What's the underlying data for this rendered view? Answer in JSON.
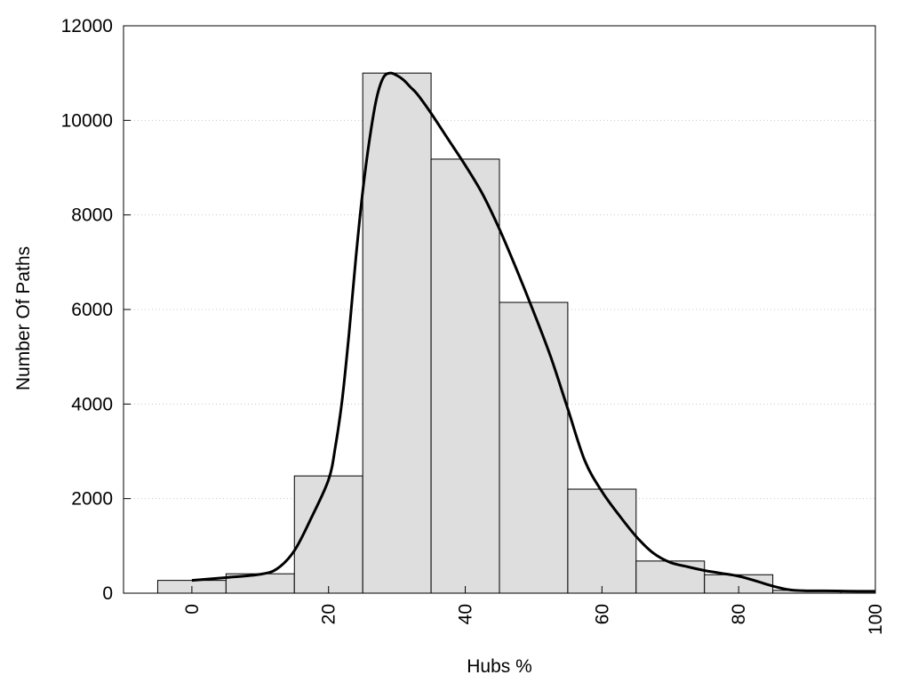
{
  "chart_data": {
    "type": "bar",
    "title": "",
    "xlabel": "Hubs %",
    "ylabel": "Number Of Paths",
    "xlim": [
      -10,
      100
    ],
    "ylim": [
      0,
      12000
    ],
    "x_ticks": [
      0,
      20,
      40,
      60,
      80,
      100
    ],
    "y_ticks": [
      0,
      2000,
      4000,
      6000,
      8000,
      10000,
      12000
    ],
    "grid": "horizontal dotted",
    "bin_width": 10,
    "bars": [
      {
        "x": 0,
        "value": 270
      },
      {
        "x": 10,
        "value": 410
      },
      {
        "x": 20,
        "value": 2480
      },
      {
        "x": 30,
        "value": 11000
      },
      {
        "x": 40,
        "value": 9180
      },
      {
        "x": 50,
        "value": 6150
      },
      {
        "x": 60,
        "value": 2200
      },
      {
        "x": 70,
        "value": 680
      },
      {
        "x": 80,
        "value": 390
      },
      {
        "x": 90,
        "value": 60
      }
    ],
    "curve": {
      "x": [
        0,
        5,
        10,
        12.5,
        15,
        17.5,
        20,
        21,
        22,
        23,
        24,
        25,
        26,
        27,
        28,
        29,
        30,
        31,
        32,
        33,
        35,
        37.5,
        40,
        42.5,
        45,
        47.5,
        50,
        52.5,
        55,
        57.5,
        60,
        62.5,
        65,
        67.5,
        70,
        72.5,
        75,
        77.5,
        80,
        82.5,
        85,
        87.5,
        90,
        92.5,
        95,
        97.5,
        100
      ],
      "y": [
        270,
        330,
        400,
        520,
        900,
        1600,
        2400,
        3100,
        4100,
        5500,
        7100,
        8500,
        9600,
        10450,
        10900,
        11000,
        10950,
        10850,
        10700,
        10550,
        10150,
        9600,
        9050,
        8450,
        7700,
        6850,
        5950,
        5000,
        3900,
        2800,
        2150,
        1650,
        1200,
        850,
        650,
        560,
        480,
        420,
        360,
        260,
        150,
        70,
        50,
        50,
        45,
        40,
        40
      ]
    }
  }
}
